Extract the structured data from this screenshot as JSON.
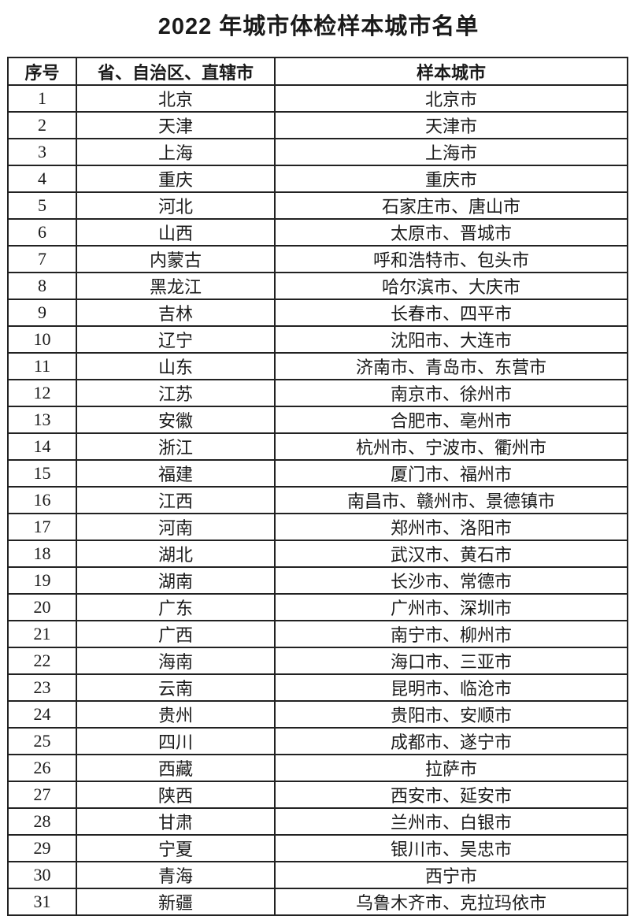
{
  "page": {
    "title": "2022 年城市体检样本城市名单"
  },
  "colors": {
    "text": "#1a1a1a",
    "border": "#222222",
    "background": "#ffffff"
  },
  "table": {
    "headers": [
      "序号",
      "省、自治区、直辖市",
      "样本城市"
    ],
    "rows": [
      [
        "1",
        "北京",
        "北京市"
      ],
      [
        "2",
        "天津",
        "天津市"
      ],
      [
        "3",
        "上海",
        "上海市"
      ],
      [
        "4",
        "重庆",
        "重庆市"
      ],
      [
        "5",
        "河北",
        "石家庄市、唐山市"
      ],
      [
        "6",
        "山西",
        "太原市、晋城市"
      ],
      [
        "7",
        "内蒙古",
        "呼和浩特市、包头市"
      ],
      [
        "8",
        "黑龙江",
        "哈尔滨市、大庆市"
      ],
      [
        "9",
        "吉林",
        "长春市、四平市"
      ],
      [
        "10",
        "辽宁",
        "沈阳市、大连市"
      ],
      [
        "11",
        "山东",
        "济南市、青岛市、东营市"
      ],
      [
        "12",
        "江苏",
        "南京市、徐州市"
      ],
      [
        "13",
        "安徽",
        "合肥市、亳州市"
      ],
      [
        "14",
        "浙江",
        "杭州市、宁波市、衢州市"
      ],
      [
        "15",
        "福建",
        "厦门市、福州市"
      ],
      [
        "16",
        "江西",
        "南昌市、赣州市、景德镇市"
      ],
      [
        "17",
        "河南",
        "郑州市、洛阳市"
      ],
      [
        "18",
        "湖北",
        "武汉市、黄石市"
      ],
      [
        "19",
        "湖南",
        "长沙市、常德市"
      ],
      [
        "20",
        "广东",
        "广州市、深圳市"
      ],
      [
        "21",
        "广西",
        "南宁市、柳州市"
      ],
      [
        "22",
        "海南",
        "海口市、三亚市"
      ],
      [
        "23",
        "云南",
        "昆明市、临沧市"
      ],
      [
        "24",
        "贵州",
        "贵阳市、安顺市"
      ],
      [
        "25",
        "四川",
        "成都市、遂宁市"
      ],
      [
        "26",
        "西藏",
        "拉萨市"
      ],
      [
        "27",
        "陕西",
        "西安市、延安市"
      ],
      [
        "28",
        "甘肃",
        "兰州市、白银市"
      ],
      [
        "29",
        "宁夏",
        "银川市、吴忠市"
      ],
      [
        "30",
        "青海",
        "西宁市"
      ],
      [
        "31",
        "新疆",
        "乌鲁木齐市、克拉玛依市"
      ]
    ]
  }
}
